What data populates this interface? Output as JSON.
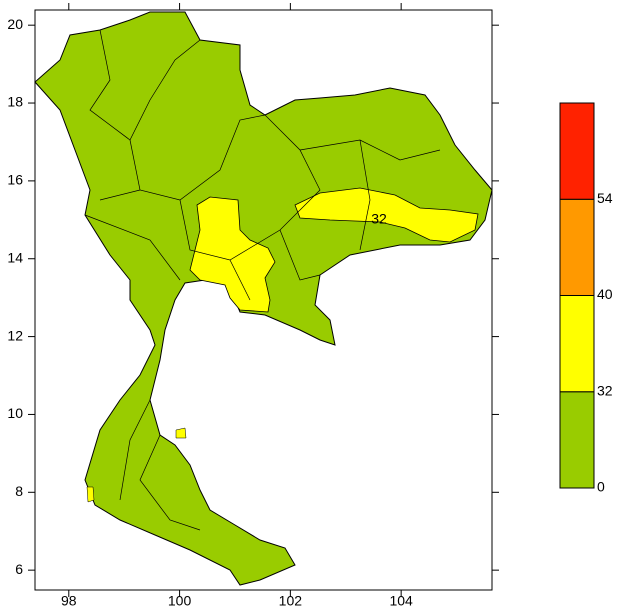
{
  "map": {
    "xlim": [
      97.39,
      105.64
    ],
    "ylim": [
      5.49,
      20.39
    ],
    "xticks": [
      98,
      100,
      102,
      104
    ],
    "yticks": [
      6,
      8,
      10,
      12,
      14,
      16,
      18,
      20
    ]
  },
  "legend": {
    "levels": [
      0,
      32,
      40,
      54
    ],
    "colors": [
      "#99cc00",
      "#ffff00",
      "#ff9900",
      "#ff2200"
    ]
  },
  "contour_labels": [
    "32"
  ]
}
